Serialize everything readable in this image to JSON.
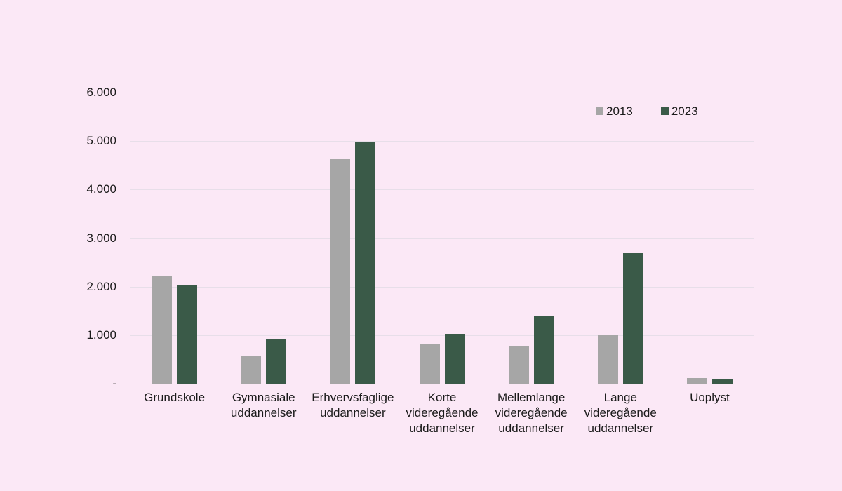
{
  "chart_data": {
    "type": "bar",
    "title": "",
    "xlabel": "",
    "ylabel": "",
    "categories": [
      "Grundskole",
      "Gymnasiale uddannelser",
      "Erhvervsfaglige uddannelser",
      "Korte videregående uddannelser",
      "Mellemlange videregående uddannelser",
      "Lange videregående uddannelser",
      "Uoplyst"
    ],
    "series": [
      {
        "name": "2013",
        "color": "#a6a6a6",
        "values": [
          2220,
          580,
          4630,
          810,
          780,
          1010,
          120
        ]
      },
      {
        "name": "2023",
        "color": "#3a5a48",
        "values": [
          2020,
          920,
          4990,
          1020,
          1390,
          2690,
          100
        ]
      }
    ],
    "ylim": [
      0,
      6000
    ],
    "ytick_interval": 1000,
    "ytick_labels": [
      "-",
      "1.000",
      "2.000",
      "3.000",
      "4.000",
      "5.000",
      "6.000"
    ],
    "grid": true,
    "legend_position": "top-right",
    "colors": {
      "background": "#fbe8f6",
      "gridline": "#e7dee9",
      "text": "#1a1a1a",
      "series_2013": "#a6a6a6",
      "series_2023": "#3a5a48"
    }
  }
}
